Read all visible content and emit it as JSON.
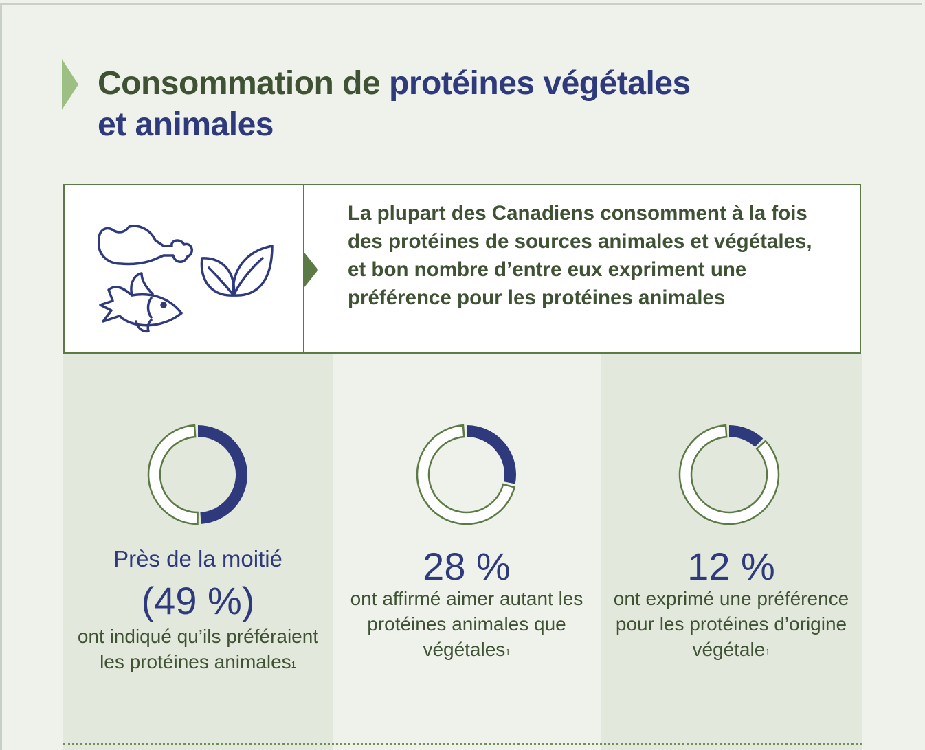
{
  "title": {
    "part1": "Consommation de ",
    "part2": "protéines végétales",
    "part3": "et animales"
  },
  "intro": {
    "text": "La plupart des Canadiens consomment à la fois des protéines de sources animales et végétales, et bon nombre d’entre eux expriment une préférence pour les protéines animales",
    "icons": [
      "chicken-leg-icon",
      "fish-icon",
      "leaf-icon"
    ]
  },
  "stats": [
    {
      "lead": "Près de la moitié",
      "value_text": "(49 %)",
      "desc": "ont indiqué qu’ils préféraient les protéines animales",
      "footnote": "1"
    },
    {
      "lead": "",
      "value_text": "28 %",
      "desc": "ont affirmé aimer autant les protéines animales que végétales",
      "footnote": "1"
    },
    {
      "lead": "",
      "value_text": "12 %",
      "desc": "ont exprimé une préférence pour les protéines d’origine végétale",
      "footnote": "1"
    }
  ],
  "chart_data": [
    {
      "type": "pie",
      "values": [
        49,
        51
      ],
      "unit": "%"
    },
    {
      "type": "pie",
      "values": [
        28,
        72
      ],
      "unit": "%"
    },
    {
      "type": "pie",
      "values": [
        12,
        88
      ],
      "unit": "%"
    }
  ],
  "colors": {
    "highlight": "#2f3a7d",
    "remainder_stroke": "#5b7a45",
    "accent_chevron": "#9dbf83",
    "dark_green": "#3f5233",
    "column_shade": "#e3e8dc",
    "background": "#eef2ea"
  }
}
